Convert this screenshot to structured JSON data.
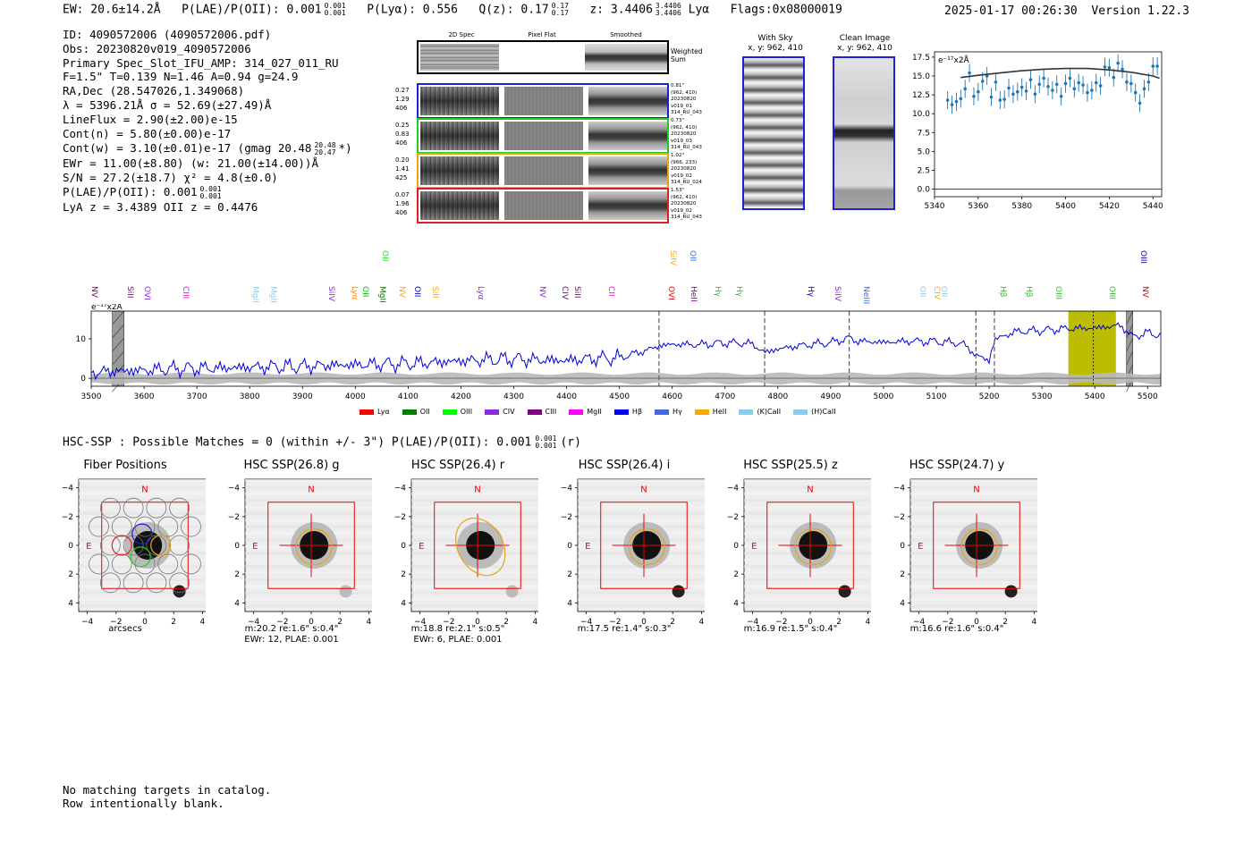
{
  "header": {
    "ew": "EW: 20.6±14.2Å",
    "plae_label": "P(LAE)/P(OII): 0.001",
    "plae_hi": "0.001",
    "plae_lo": "0.001",
    "plya": "P(Lyα): 0.556",
    "qz_label": "Q(z): 0.17",
    "qz_hi": "0.17",
    "qz_lo": "0.17",
    "z_label": "z: 3.4406",
    "z_hi": "3.4406",
    "z_lo": "3.4406",
    "z_line": "Lyα",
    "flags": "Flags:0x08000019",
    "datetime": "2025-01-17 00:26:30",
    "version": "Version 1.22.3"
  },
  "info": {
    "id": "ID: 4090572006 (4090572006.pdf)",
    "obs": "Obs: 20230820v019_4090572006",
    "primary": "Primary Spec_Slot_IFU_AMP: 314_027_011_RU",
    "fiber": "F=1.5\"  T=0.139  N=1.46  A=0.94  g=24.9",
    "radec": "RA,Dec (28.547026,1.349068)",
    "lambda": "λ = 5396.21Å  σ = 52.69(±27.49)Å",
    "lineflux": "LineFlux = 2.90(±2.00)e-15",
    "contn": "Cont(n) = 5.80(±0.00)e-17",
    "contw": "Cont(w) = 3.10(±0.01)e-17 (gmag 20.48",
    "contw_hi": "20.48",
    "contw_lo": "20.47",
    "contw_end": "*)",
    "ewr": "EWr = 11.00(±8.80) (w: 21.00(±14.00))Å",
    "sn": "S/N = 27.2(±18.7)  χ² = 4.8(±0.0)",
    "plae": "P(LAE)/P(OII): 0.001",
    "plae_hi": "0.001",
    "plae_lo": "0.001",
    "lya_oii": "LyA z = 3.4389  OII z = 0.4476"
  },
  "cutouts": {
    "col_headers": [
      "2D Spec",
      "Pixel Flat",
      "Smoothed"
    ],
    "weighted_sum": "Weighted Sum",
    "rows": [
      {
        "left": [
          "0.27",
          "1.29",
          "406"
        ],
        "right": [
          "0.81\"",
          "(962, 410)",
          "20230820",
          "v019_01",
          "314_RU_043"
        ],
        "color": "#1f1fd6"
      },
      {
        "left": [
          "0.25",
          "0.83",
          "406"
        ],
        "right": [
          "0.73\"",
          "(962, 410)",
          "20230820",
          "v019_03",
          "314_RU_043"
        ],
        "color": "#22cc22"
      },
      {
        "left": [
          "0.20",
          "1.41",
          "425"
        ],
        "right": [
          "1.02\"",
          "(966, 233)",
          "20230820",
          "v019_02",
          "314_RU_024"
        ],
        "color": "#e8a317"
      },
      {
        "left": [
          "0.07",
          "1.96",
          "406"
        ],
        "right": [
          "1.53\"",
          "(962, 410)",
          "20230820",
          "v019_02",
          "314_RU_043"
        ],
        "color": "#e02020"
      }
    ]
  },
  "sky": {
    "with_sky_title": "With Sky",
    "with_sky_sub": "x, y: 962, 410",
    "clean_title": "Clean Image",
    "clean_sub": "x, y: 962, 410"
  },
  "zoom_chart": {
    "unit_label": "e⁻¹⁷x2Å",
    "xticks": [
      "5340",
      "5360",
      "5380",
      "5400",
      "5420",
      "5440"
    ],
    "yticks": [
      "0.0",
      "2.5",
      "5.0",
      "7.5",
      "10.0",
      "12.5",
      "15.0",
      "17.5"
    ]
  },
  "chart_data": [
    {
      "type": "scatter",
      "title": "",
      "xlabel": "",
      "ylabel": "e-17x2Å",
      "xlim": [
        5340,
        5444
      ],
      "ylim": [
        -1,
        18.2
      ],
      "x": [
        5346,
        5348,
        5350,
        5352,
        5354,
        5356,
        5358,
        5360,
        5362,
        5364,
        5366,
        5368,
        5370,
        5372,
        5374,
        5376,
        5378,
        5380,
        5382,
        5384,
        5386,
        5388,
        5390,
        5392,
        5394,
        5396,
        5398,
        5400,
        5402,
        5404,
        5406,
        5408,
        5410,
        5412,
        5414,
        5416,
        5418,
        5420,
        5422,
        5424,
        5426,
        5428,
        5430,
        5432,
        5434,
        5436,
        5438,
        5440,
        5442
      ],
      "y": [
        11.8,
        11.2,
        11.6,
        12.0,
        13.3,
        15.4,
        12.3,
        12.9,
        14.3,
        15.0,
        12.2,
        14.2,
        11.8,
        11.9,
        13.4,
        12.6,
        12.9,
        13.5,
        13.0,
        14.5,
        12.6,
        13.9,
        14.7,
        13.6,
        13.1,
        13.9,
        12.3,
        14.0,
        14.7,
        13.3,
        14.1,
        13.8,
        12.8,
        13.1,
        14.1,
        13.7,
        16.2,
        16.1,
        14.8,
        16.7,
        15.9,
        14.2,
        14.0,
        12.8,
        11.4,
        13.3,
        14.2,
        16.3,
        16.3
      ],
      "model_x": [
        5352,
        5360,
        5370,
        5380,
        5390,
        5400,
        5410,
        5420,
        5430,
        5440,
        5443
      ],
      "model_y": [
        14.8,
        15.1,
        15.4,
        15.7,
        15.9,
        16.0,
        16.0,
        15.8,
        15.5,
        15.0,
        14.7
      ]
    },
    {
      "type": "line",
      "title": "",
      "xlabel": "",
      "ylabel": "e-17x2Å",
      "xlim": [
        3500,
        5525
      ],
      "ylim": [
        -2,
        17
      ],
      "xticks": [
        3500,
        3600,
        3700,
        3800,
        3900,
        4000,
        4100,
        4200,
        4300,
        4400,
        4500,
        4600,
        4700,
        4800,
        4900,
        5000,
        5100,
        5200,
        5300,
        5400,
        5500
      ],
      "yticks": [
        0,
        10
      ],
      "x": [
        3500,
        3550,
        3600,
        3650,
        3700,
        3750,
        3800,
        3850,
        3900,
        3950,
        4000,
        4050,
        4100,
        4150,
        4200,
        4250,
        4300,
        4350,
        4400,
        4450,
        4500,
        4550,
        4575,
        4600,
        4650,
        4700,
        4750,
        4775,
        4800,
        4850,
        4900,
        4935,
        4950,
        5000,
        5050,
        5100,
        5150,
        5175,
        5200,
        5210,
        5250,
        5300,
        5350,
        5400,
        5450,
        5470,
        5500,
        5525
      ],
      "y": [
        1.5,
        1.8,
        2.0,
        2.4,
        2.5,
        2.6,
        2.8,
        2.9,
        3.0,
        3.3,
        3.4,
        3.6,
        3.7,
        4.0,
        4.4,
        4.7,
        4.9,
        4.6,
        4.5,
        5.0,
        5.2,
        7.0,
        8.2,
        8.6,
        8.5,
        9.0,
        8.8,
        6.5,
        7.4,
        8.4,
        9.0,
        10.2,
        9.4,
        9.1,
        9.4,
        9.3,
        8.8,
        5.9,
        4.4,
        9.8,
        11.8,
        12.1,
        12.6,
        12.7,
        13.4,
        10.5,
        11.5,
        10.9
      ],
      "sky_band_y": [
        0.5,
        0.5
      ],
      "highlight_range": [
        5350,
        5440
      ],
      "zline_x": 5397,
      "masked_ranges": [
        [
          3540,
          3562
        ],
        [
          5460,
          5472
        ]
      ],
      "dashed_lines": [
        4575,
        4775,
        4935,
        5175,
        5210
      ]
    }
  ],
  "line_labels": [
    {
      "text": "NV",
      "x": 3505,
      "color": "#800080",
      "row": 1
    },
    {
      "text": "SiII",
      "x": 3572,
      "color": "#800080",
      "row": 1
    },
    {
      "text": "OVI",
      "x": 3605,
      "color": "#8a2be2",
      "row": 1
    },
    {
      "text": "CIII",
      "x": 3678,
      "color": "#ff00ff",
      "row": 1
    },
    {
      "text": "MgII",
      "x": 3809,
      "color": "#87ceeb",
      "row": 1
    },
    {
      "text": "MgII",
      "x": 3843,
      "color": "#87ceeb",
      "row": 1
    },
    {
      "text": "SiIV",
      "x": 3953,
      "color": "#8a2be2",
      "row": 1
    },
    {
      "text": "Lyα",
      "x": 3998,
      "color": "#ff8c00",
      "row": 1
    },
    {
      "text": "OII",
      "x": 4018,
      "color": "#00c000",
      "row": 1
    },
    {
      "text": "MgII",
      "x": 4050,
      "color": "#008000",
      "row": 1
    },
    {
      "text": "OII",
      "x": 4056,
      "color": "#22dd22",
      "row": 0
    },
    {
      "text": "NV",
      "x": 4087,
      "color": "#ffa500",
      "row": 1
    },
    {
      "text": "OII",
      "x": 4117,
      "color": "#0000cd",
      "row": 1
    },
    {
      "text": "SiII",
      "x": 4150,
      "color": "#ffa500",
      "row": 1
    },
    {
      "text": "Lyα",
      "x": 4237,
      "color": "#8a2be2",
      "row": 1
    },
    {
      "text": "NV",
      "x": 4353,
      "color": "#8a2be2",
      "row": 1
    },
    {
      "text": "CIV",
      "x": 4396,
      "color": "#800080",
      "row": 1
    },
    {
      "text": "SiII",
      "x": 4420,
      "color": "#800080",
      "row": 1
    },
    {
      "text": "CII",
      "x": 4483,
      "color": "#ff00ff",
      "row": 1
    },
    {
      "text": "SiIV",
      "x": 4600,
      "color": "#ffa500",
      "row": 0
    },
    {
      "text": "OII",
      "x": 4637,
      "color": "#4169e1",
      "row": 0
    },
    {
      "text": "OVI",
      "x": 4597,
      "color": "#e00000",
      "row": 1
    },
    {
      "text": "HeII",
      "x": 4640,
      "color": "#800080",
      "row": 1
    },
    {
      "text": "Hγ",
      "x": 4685,
      "color": "#22cc22",
      "row": 1
    },
    {
      "text": "Hγ",
      "x": 4725,
      "color": "#22cc22",
      "row": 1
    },
    {
      "text": "Hγ",
      "x": 4862,
      "color": "#0000cd",
      "row": 1
    },
    {
      "text": "SiIV",
      "x": 4912,
      "color": "#8a2be2",
      "row": 1
    },
    {
      "text": "NeIII",
      "x": 4967,
      "color": "#4169e1",
      "row": 1
    },
    {
      "text": "OII",
      "x": 5073,
      "color": "#87ceeb",
      "row": 1
    },
    {
      "text": "CIV",
      "x": 5100,
      "color": "#ffa500",
      "row": 1
    },
    {
      "text": "OII",
      "x": 5113,
      "color": "#87ceeb",
      "row": 1
    },
    {
      "text": "Hβ",
      "x": 5225,
      "color": "#22cc22",
      "row": 1
    },
    {
      "text": "Hβ",
      "x": 5275,
      "color": "#22cc22",
      "row": 1
    },
    {
      "text": "OIII",
      "x": 5330,
      "color": "#22cc22",
      "row": 1
    },
    {
      "text": "OIII",
      "x": 5432,
      "color": "#22cc22",
      "row": 1
    },
    {
      "text": "NV",
      "x": 5495,
      "color": "#e00000",
      "row": 1
    },
    {
      "text": "OIII",
      "x": 5491,
      "color": "#0000cd",
      "row": 0
    }
  ],
  "legend": [
    {
      "label": "Lyα",
      "color": "#ff0000"
    },
    {
      "label": "OII",
      "color": "#008000"
    },
    {
      "label": "OIII",
      "color": "#00ff00"
    },
    {
      "label": "CIV",
      "color": "#8a2be2"
    },
    {
      "label": "CIII",
      "color": "#800080"
    },
    {
      "label": "MgII",
      "color": "#ff00ff"
    },
    {
      "label": "Hβ",
      "color": "#0000ff"
    },
    {
      "label": "Hγ",
      "color": "#4169e1"
    },
    {
      "label": "HeII",
      "color": "#ffa500"
    },
    {
      "label": "(K)CaII",
      "color": "#87ceeb"
    },
    {
      "label": "(H)CaII",
      "color": "#87ceeb"
    }
  ],
  "hsc": {
    "title": "HSC-SSP : Possible Matches = 0 (within +/- 3\")  P(LAE)/P(OII): 0.001",
    "title_hi": "0.001",
    "title_lo": "0.001",
    "title_end": "(r)",
    "panels": [
      {
        "title": "Fiber Positions",
        "cap1": "arcsecs",
        "cap2": ""
      },
      {
        "title": "HSC SSP(26.8) g",
        "cap1": "m:20.2  re:1.6\"  s:0.4\"",
        "cap2": "EWr: 12, PLAE: 0.001"
      },
      {
        "title": "HSC SSP(26.4) r",
        "cap1": "m:18.8  re:2.1\"  s:0.5\"",
        "cap2": "EWr: 6, PLAE: 0.001"
      },
      {
        "title": "HSC SSP(26.4) i",
        "cap1": "m:17.5  re:1.4\"  s:0.3\"",
        "cap2": ""
      },
      {
        "title": "HSC SSP(25.5) z",
        "cap1": "m:16.9  re:1.5\"  s:0.4\"",
        "cap2": ""
      },
      {
        "title": "HSC SSP(24.7) y",
        "cap1": "m:16.6  re:1.6\"  s:0.4\"",
        "cap2": ""
      }
    ],
    "axis_ticks": [
      "−4",
      "−2",
      "0",
      "2",
      "4"
    ],
    "compass_n": "N",
    "compass_e": "E"
  },
  "footer": {
    "line1": "No matching targets in catalog.",
    "line2": "Row intentionally blank."
  }
}
